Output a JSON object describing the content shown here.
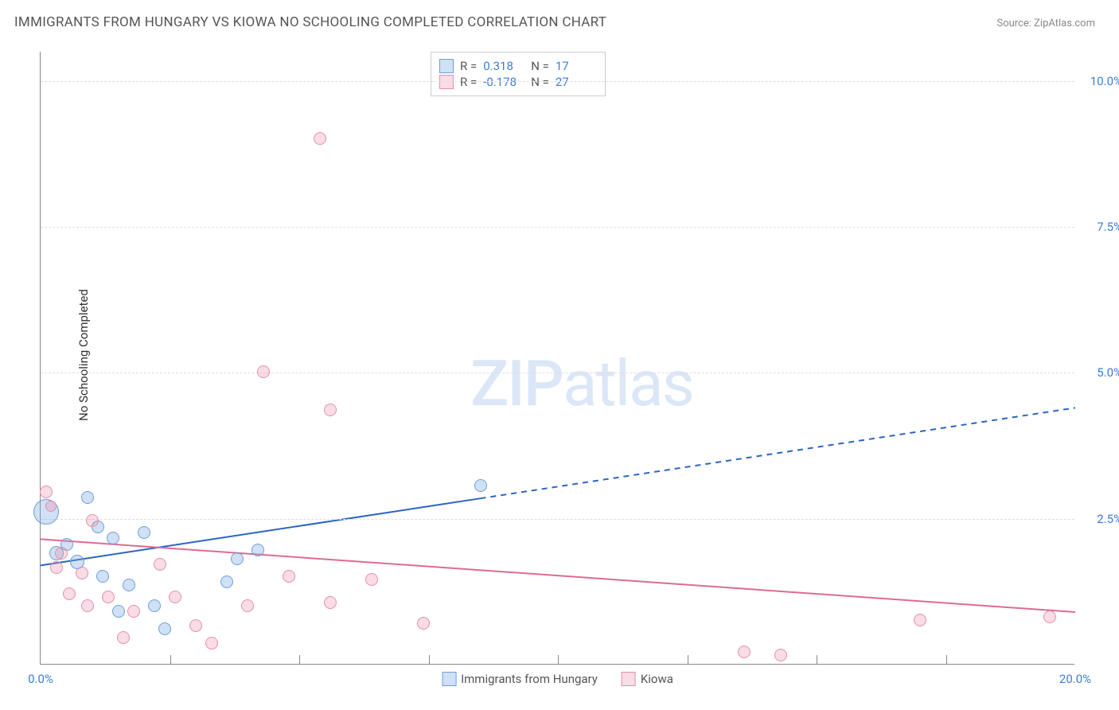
{
  "title": "IMMIGRANTS FROM HUNGARY VS KIOWA NO SCHOOLING COMPLETED CORRELATION CHART",
  "source": "Source: ZipAtlas.com",
  "ylabel": "No Schooling Completed",
  "watermark_bold": "ZIP",
  "watermark_light": "atlas",
  "chart": {
    "type": "scatter-with-trend",
    "xlim": [
      0,
      20
    ],
    "ylim": [
      0,
      10.5
    ],
    "background_color": "#ffffff",
    "grid_color": "#dddddd",
    "grid_dash": "4,4",
    "axis_color": "#888888",
    "tick_color": "#3b7dd8",
    "tick_fontsize": 15,
    "title_fontsize": 17,
    "title_color": "#555555",
    "yticks": [
      {
        "v": 2.5,
        "label": "2.5%"
      },
      {
        "v": 5.0,
        "label": "5.0%"
      },
      {
        "v": 7.5,
        "label": "7.5%"
      },
      {
        "v": 10.0,
        "label": "10.0%"
      }
    ],
    "xticks_minor": [
      2.5,
      5.0,
      7.5,
      10.0,
      12.5,
      15.0,
      17.5
    ],
    "xticks_labeled": [
      {
        "v": 0,
        "label": "0.0%"
      },
      {
        "v": 20,
        "label": "20.0%"
      }
    ],
    "series": [
      {
        "key": "hungary",
        "name": "Immigrants from Hungary",
        "color_fill": "rgba(120,165,225,0.35)",
        "color_stroke": "#6f9fd6",
        "trend_color": "#2b64c4",
        "trend_width": 2,
        "R": "0.318",
        "N": "17",
        "trend_solid_end_x": 8.5,
        "trend": {
          "x1": 0,
          "y1": 1.7,
          "x2": 20,
          "y2": 4.4
        },
        "points": [
          {
            "x": 0.1,
            "y": 2.6,
            "r": 16
          },
          {
            "x": 0.3,
            "y": 1.9,
            "r": 9
          },
          {
            "x": 0.5,
            "y": 2.05,
            "r": 8
          },
          {
            "x": 0.7,
            "y": 1.75,
            "r": 9
          },
          {
            "x": 0.9,
            "y": 2.85,
            "r": 8
          },
          {
            "x": 1.1,
            "y": 2.35,
            "r": 8
          },
          {
            "x": 1.2,
            "y": 1.5,
            "r": 8
          },
          {
            "x": 1.4,
            "y": 2.15,
            "r": 8
          },
          {
            "x": 1.5,
            "y": 0.9,
            "r": 8
          },
          {
            "x": 1.7,
            "y": 1.35,
            "r": 8
          },
          {
            "x": 2.0,
            "y": 2.25,
            "r": 8
          },
          {
            "x": 2.2,
            "y": 1.0,
            "r": 8
          },
          {
            "x": 2.4,
            "y": 0.6,
            "r": 8
          },
          {
            "x": 3.6,
            "y": 1.4,
            "r": 8
          },
          {
            "x": 3.8,
            "y": 1.8,
            "r": 8
          },
          {
            "x": 4.2,
            "y": 1.95,
            "r": 8
          },
          {
            "x": 8.5,
            "y": 3.05,
            "r": 8
          }
        ]
      },
      {
        "key": "kiowa",
        "name": "Kiowa",
        "color_fill": "rgba(235,140,170,0.30)",
        "color_stroke": "#e490aa",
        "trend_color": "#e06a8f",
        "trend_width": 2,
        "R": "-0.178",
        "N": "27",
        "trend_solid_end_x": 20,
        "trend": {
          "x1": 0,
          "y1": 2.15,
          "x2": 20,
          "y2": 0.9
        },
        "points": [
          {
            "x": 0.1,
            "y": 2.95,
            "r": 8
          },
          {
            "x": 0.2,
            "y": 2.7,
            "r": 7
          },
          {
            "x": 0.3,
            "y": 1.65,
            "r": 8
          },
          {
            "x": 0.4,
            "y": 1.9,
            "r": 8
          },
          {
            "x": 0.55,
            "y": 1.2,
            "r": 8
          },
          {
            "x": 0.8,
            "y": 1.55,
            "r": 8
          },
          {
            "x": 0.9,
            "y": 1.0,
            "r": 8
          },
          {
            "x": 1.0,
            "y": 2.45,
            "r": 8
          },
          {
            "x": 1.3,
            "y": 1.15,
            "r": 8
          },
          {
            "x": 1.6,
            "y": 0.45,
            "r": 8
          },
          {
            "x": 1.8,
            "y": 0.9,
            "r": 8
          },
          {
            "x": 2.3,
            "y": 1.7,
            "r": 8
          },
          {
            "x": 2.6,
            "y": 1.15,
            "r": 8
          },
          {
            "x": 3.0,
            "y": 0.65,
            "r": 8
          },
          {
            "x": 3.3,
            "y": 0.35,
            "r": 8
          },
          {
            "x": 4.0,
            "y": 1.0,
            "r": 8
          },
          {
            "x": 4.3,
            "y": 5.0,
            "r": 8
          },
          {
            "x": 4.8,
            "y": 1.5,
            "r": 8
          },
          {
            "x": 5.4,
            "y": 9.0,
            "r": 8
          },
          {
            "x": 5.6,
            "y": 1.05,
            "r": 8
          },
          {
            "x": 5.6,
            "y": 4.35,
            "r": 8
          },
          {
            "x": 6.4,
            "y": 1.45,
            "r": 8
          },
          {
            "x": 7.4,
            "y": 0.7,
            "r": 8
          },
          {
            "x": 13.6,
            "y": 0.2,
            "r": 8
          },
          {
            "x": 14.3,
            "y": 0.15,
            "r": 8
          },
          {
            "x": 17.0,
            "y": 0.75,
            "r": 8
          },
          {
            "x": 19.5,
            "y": 0.8,
            "r": 8
          }
        ]
      }
    ],
    "legend_box": {
      "border_color": "#cccccc",
      "bg": "#ffffff"
    }
  }
}
